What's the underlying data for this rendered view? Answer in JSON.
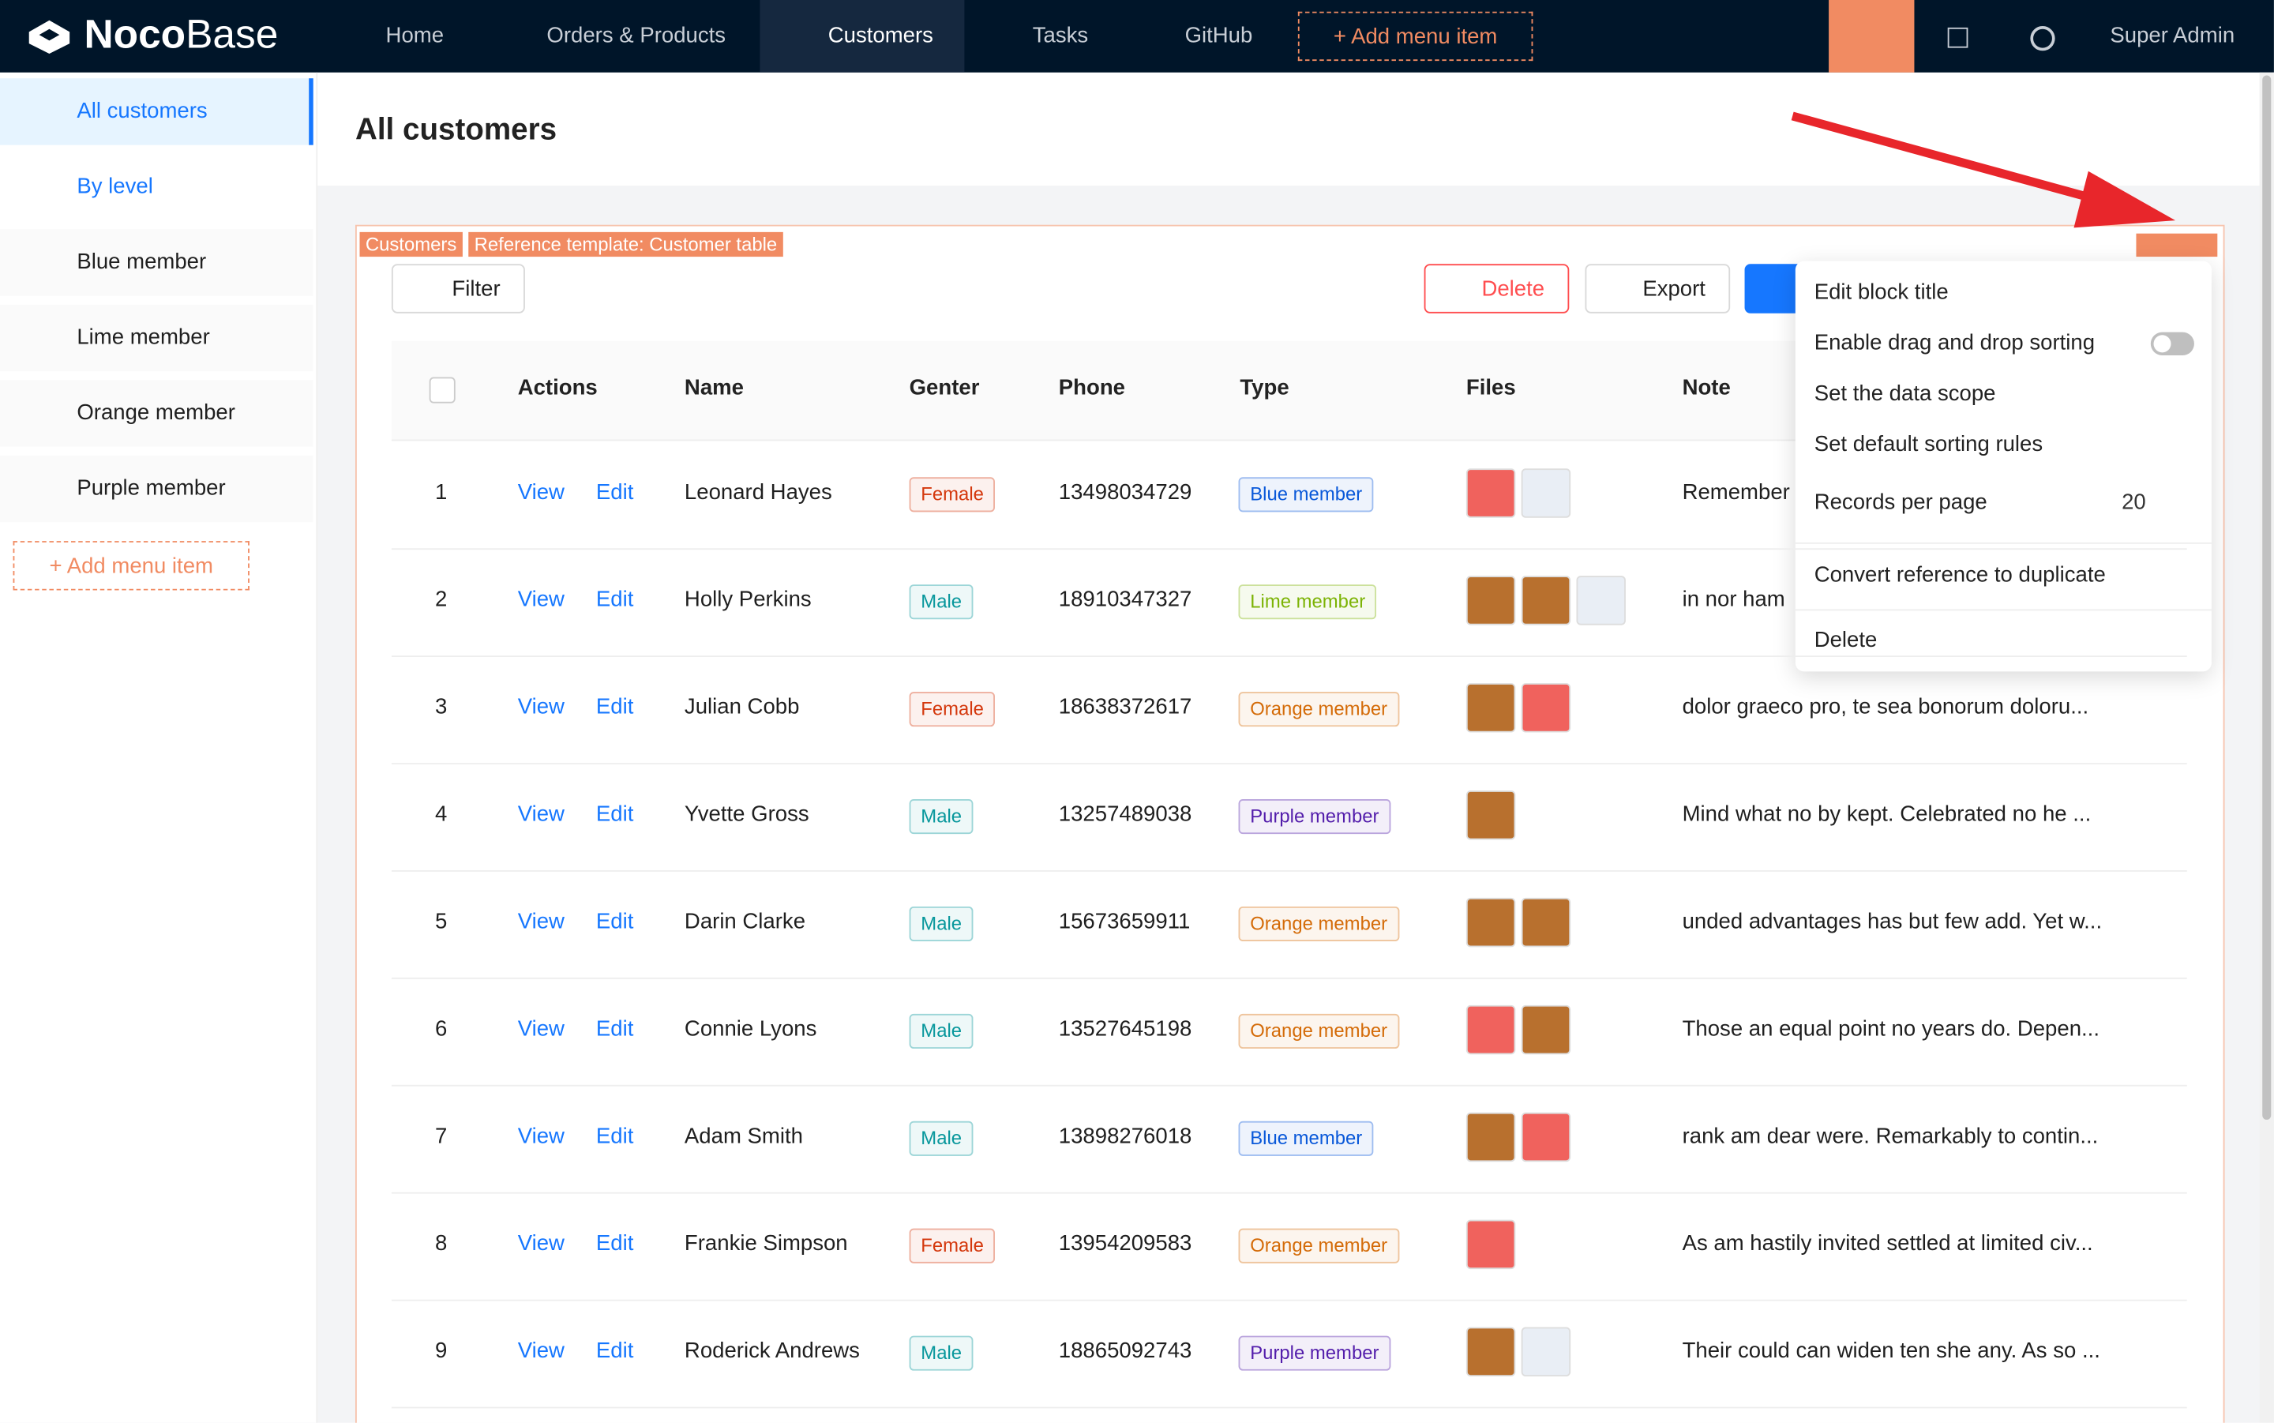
{
  "nav": {
    "logo_bold": "Noco",
    "logo_light": "Base",
    "items": [
      "Home",
      "Orders & Products",
      "Customers",
      "Tasks",
      "GitHub"
    ],
    "add": "Add menu item",
    "user": "Super Admin"
  },
  "sidebar": {
    "items": [
      "All customers",
      "By level"
    ],
    "levels": [
      "Blue member",
      "Lime member",
      "Orange member",
      "Purple member"
    ],
    "add": "Add menu item"
  },
  "page": {
    "title": "All customers"
  },
  "block": {
    "tags": [
      "Customers",
      "Reference template: Customer table"
    ],
    "filter": "Filter",
    "delete": "Delete",
    "export": "Export"
  },
  "table": {
    "columns": [
      "Actions",
      "Name",
      "Genter",
      "Phone",
      "Type",
      "Files",
      "Note"
    ],
    "view": "View",
    "edit": "Edit",
    "rows": [
      {
        "no": 1,
        "name": "Leonard Hayes",
        "gender": "Female",
        "gender_color": "#d4380d",
        "phone": "13498034729",
        "type": "Blue member",
        "type_color": "#0958d9",
        "note": "Remember"
      },
      {
        "no": 2,
        "name": "Holly Perkins",
        "gender": "Male",
        "gender_color": "#08979c",
        "phone": "18910347327",
        "type": "Lime member",
        "type_color": "#7cb305",
        "note": "in nor ham"
      },
      {
        "no": 3,
        "name": "Julian Cobb",
        "gender": "Female",
        "gender_color": "#d4380d",
        "phone": "18638372617",
        "type": "Orange member",
        "type_color": "#d46b08",
        "note": "dolor graeco pro, te sea bonorum doloru..."
      },
      {
        "no": 4,
        "name": "Yvette Gross",
        "gender": "Male",
        "gender_color": "#08979c",
        "phone": "13257489038",
        "type": "Purple member",
        "type_color": "#531dab",
        "note": "Mind what no by kept. Celebrated no he ..."
      },
      {
        "no": 5,
        "name": "Darin Clarke",
        "gender": "Male",
        "gender_color": "#08979c",
        "phone": "15673659911",
        "type": "Orange member",
        "type_color": "#d46b08",
        "note": "unded advantages has but few add. Yet w..."
      },
      {
        "no": 6,
        "name": "Connie Lyons",
        "gender": "Male",
        "gender_color": "#08979c",
        "phone": "13527645198",
        "type": "Orange member",
        "type_color": "#d46b08",
        "note": "Those an equal point no years do. Depen..."
      },
      {
        "no": 7,
        "name": "Adam Smith",
        "gender": "Male",
        "gender_color": "#08979c",
        "phone": "13898276018",
        "type": "Blue member",
        "type_color": "#0958d9",
        "note": "rank am dear were. Remarkably to contin..."
      },
      {
        "no": 8,
        "name": "Frankie Simpson",
        "gender": "Female",
        "gender_color": "#d4380d",
        "phone": "13954209583",
        "type": "Orange member",
        "type_color": "#d46b08",
        "note": "As am hastily invited settled at limited civ..."
      },
      {
        "no": 9,
        "name": "Roderick Andrews",
        "gender": "Male",
        "gender_color": "#08979c",
        "phone": "18865092743",
        "type": "Purple member",
        "type_color": "#531dab",
        "note": "Their could can widen ten she any. As so ..."
      }
    ]
  },
  "menu": {
    "items": [
      "Edit block title",
      "Enable drag and drop sorting",
      "Set the data scope",
      "Set default sorting rules"
    ],
    "records_label": "Records per page",
    "records_value": "20",
    "convert": "Convert reference to duplicate",
    "delete": "Delete"
  }
}
